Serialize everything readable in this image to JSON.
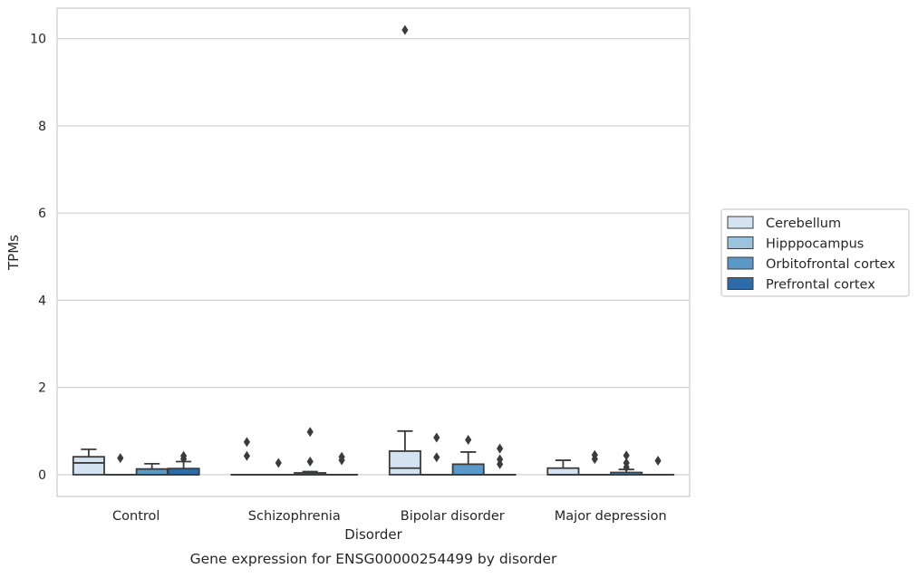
{
  "chart_data": {
    "type": "box",
    "title": "",
    "caption": "Gene expression for ENSG00000254499 by disorder",
    "xlabel": "Disorder",
    "ylabel": "TPMs",
    "ylim": [
      -0.5,
      10.7
    ],
    "yticks": [
      0,
      2,
      4,
      6,
      8,
      10
    ],
    "grid": true,
    "legend_position": "right",
    "categories": [
      "Control",
      "Schizophrenia",
      "Bipolar disorder",
      "Major depression"
    ],
    "series": [
      {
        "name": "Cerebellum",
        "color": "#d4e3f1",
        "boxes": [
          {
            "q1": 0,
            "median": 0.27,
            "q3": 0.41,
            "whisker_low": 0,
            "whisker_high": 0.58,
            "outliers": []
          },
          {
            "q1": 0,
            "median": 0,
            "q3": 0,
            "whisker_low": 0,
            "whisker_high": 0,
            "outliers": [
              0.43,
              0.75
            ]
          },
          {
            "q1": 0,
            "median": 0.15,
            "q3": 0.54,
            "whisker_low": 0,
            "whisker_high": 1.0,
            "outliers": [
              10.2
            ]
          },
          {
            "q1": 0,
            "median": 0,
            "q3": 0.15,
            "whisker_low": 0,
            "whisker_high": 0.33,
            "outliers": []
          }
        ]
      },
      {
        "name": "Hipppocampus",
        "color": "#9ac3dd",
        "boxes": [
          {
            "q1": 0,
            "median": 0,
            "q3": 0,
            "whisker_low": 0,
            "whisker_high": 0,
            "outliers": [
              0.38
            ]
          },
          {
            "q1": 0,
            "median": 0,
            "q3": 0,
            "whisker_low": 0,
            "whisker_high": 0,
            "outliers": [
              0.27
            ]
          },
          {
            "q1": 0,
            "median": 0,
            "q3": 0,
            "whisker_low": 0,
            "whisker_high": 0,
            "outliers": [
              0.4,
              0.85
            ]
          },
          {
            "q1": 0,
            "median": 0,
            "q3": 0,
            "whisker_low": 0,
            "whisker_high": 0,
            "outliers": [
              0.36,
              0.45
            ]
          }
        ]
      },
      {
        "name": "Orbitofrontal cortex",
        "color": "#5b9ac8",
        "boxes": [
          {
            "q1": 0,
            "median": 0,
            "q3": 0.13,
            "whisker_low": 0,
            "whisker_high": 0.25,
            "outliers": []
          },
          {
            "q1": 0,
            "median": 0,
            "q3": 0.04,
            "whisker_low": 0,
            "whisker_high": 0.07,
            "outliers": [
              0.3,
              0.98
            ]
          },
          {
            "q1": 0,
            "median": 0,
            "q3": 0.24,
            "whisker_low": 0,
            "whisker_high": 0.52,
            "outliers": [
              0.8
            ]
          },
          {
            "q1": 0,
            "median": 0,
            "q3": 0.05,
            "whisker_low": 0,
            "whisker_high": 0.12,
            "outliers": [
              0.17,
              0.27,
              0.44
            ]
          }
        ]
      },
      {
        "name": "Prefrontal cortex",
        "color": "#2d6ca8",
        "boxes": [
          {
            "q1": 0,
            "median": 0,
            "q3": 0.14,
            "whisker_low": 0,
            "whisker_high": 0.3,
            "outliers": [
              0.36,
              0.43
            ]
          },
          {
            "q1": 0,
            "median": 0,
            "q3": 0,
            "whisker_low": 0,
            "whisker_high": 0,
            "outliers": [
              0.33,
              0.41
            ]
          },
          {
            "q1": 0,
            "median": 0,
            "q3": 0,
            "whisker_low": 0,
            "whisker_high": 0,
            "outliers": [
              0.24,
              0.35,
              0.6
            ]
          },
          {
            "q1": 0,
            "median": 0,
            "q3": 0,
            "whisker_low": 0,
            "whisker_high": 0,
            "outliers": [
              0.32
            ]
          }
        ]
      }
    ]
  }
}
